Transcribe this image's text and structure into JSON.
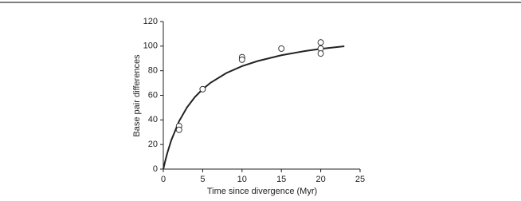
{
  "chart_data": {
    "type": "scatter",
    "x_label": "Time since divergence (Myr)",
    "y_label": "Base pair differences",
    "points": {
      "x": [
        2,
        2,
        5,
        10,
        10,
        15,
        20,
        20,
        20
      ],
      "y": [
        35,
        32,
        65,
        91,
        89,
        98,
        103,
        98,
        94
      ]
    },
    "curve": {
      "x": [
        0,
        0.25,
        0.5,
        1,
        2,
        3,
        4,
        5,
        6,
        8,
        10,
        12,
        15,
        18,
        20,
        23
      ],
      "y": [
        0,
        6.8,
        12.9,
        23.3,
        38.9,
        50.1,
        58.5,
        65,
        70.2,
        78.1,
        83.7,
        87.9,
        92.6,
        96,
        97.8,
        99.9
      ]
    },
    "color": "#222222",
    "xlim": [
      0,
      25
    ],
    "xticks": [
      0,
      5,
      10,
      15,
      20,
      25
    ],
    "ylim": [
      0,
      120
    ],
    "yticks": [
      0,
      20,
      40,
      60,
      80,
      100,
      120
    ]
  }
}
